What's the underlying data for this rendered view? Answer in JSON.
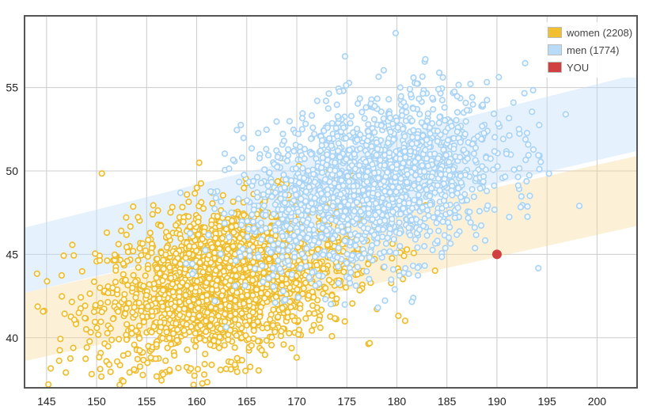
{
  "chart_data": {
    "type": "scatter",
    "title": "",
    "xlabel": "",
    "ylabel": "",
    "xlim": [
      142.8,
      204
    ],
    "ylim": [
      37,
      59.3
    ],
    "xticks": [
      145,
      150,
      155,
      160,
      165,
      170,
      175,
      180,
      185,
      190,
      195,
      200
    ],
    "yticks": [
      40,
      45,
      50,
      55
    ],
    "grid": true,
    "legend_position": "top-right",
    "series": [
      {
        "name": "women",
        "label": "women (2208)",
        "count": 2208,
        "color": "#f0c030",
        "mean": [
          163,
          43.5
        ],
        "sd": [
          6.3,
          2.4
        ],
        "corr": 0.35,
        "band": {
          "x": [
            142.8,
            204
          ],
          "lower": [
            38.6,
            46.7
          ],
          "upper": [
            42.7,
            50.9
          ]
        }
      },
      {
        "name": "men",
        "label": "men (1774)",
        "count": 1774,
        "color": "#a9d3f5",
        "mean": [
          177.5,
          49.2
        ],
        "sd": [
          6.5,
          2.6
        ],
        "corr": 0.35,
        "band": {
          "x": [
            142.8,
            204
          ],
          "lower": [
            42.7,
            51.2
          ],
          "upper": [
            46.6,
            55.8
          ]
        }
      },
      {
        "name": "YOU",
        "label": "YOU",
        "color": "#d04040",
        "points": [
          [
            190,
            45
          ]
        ]
      }
    ]
  }
}
